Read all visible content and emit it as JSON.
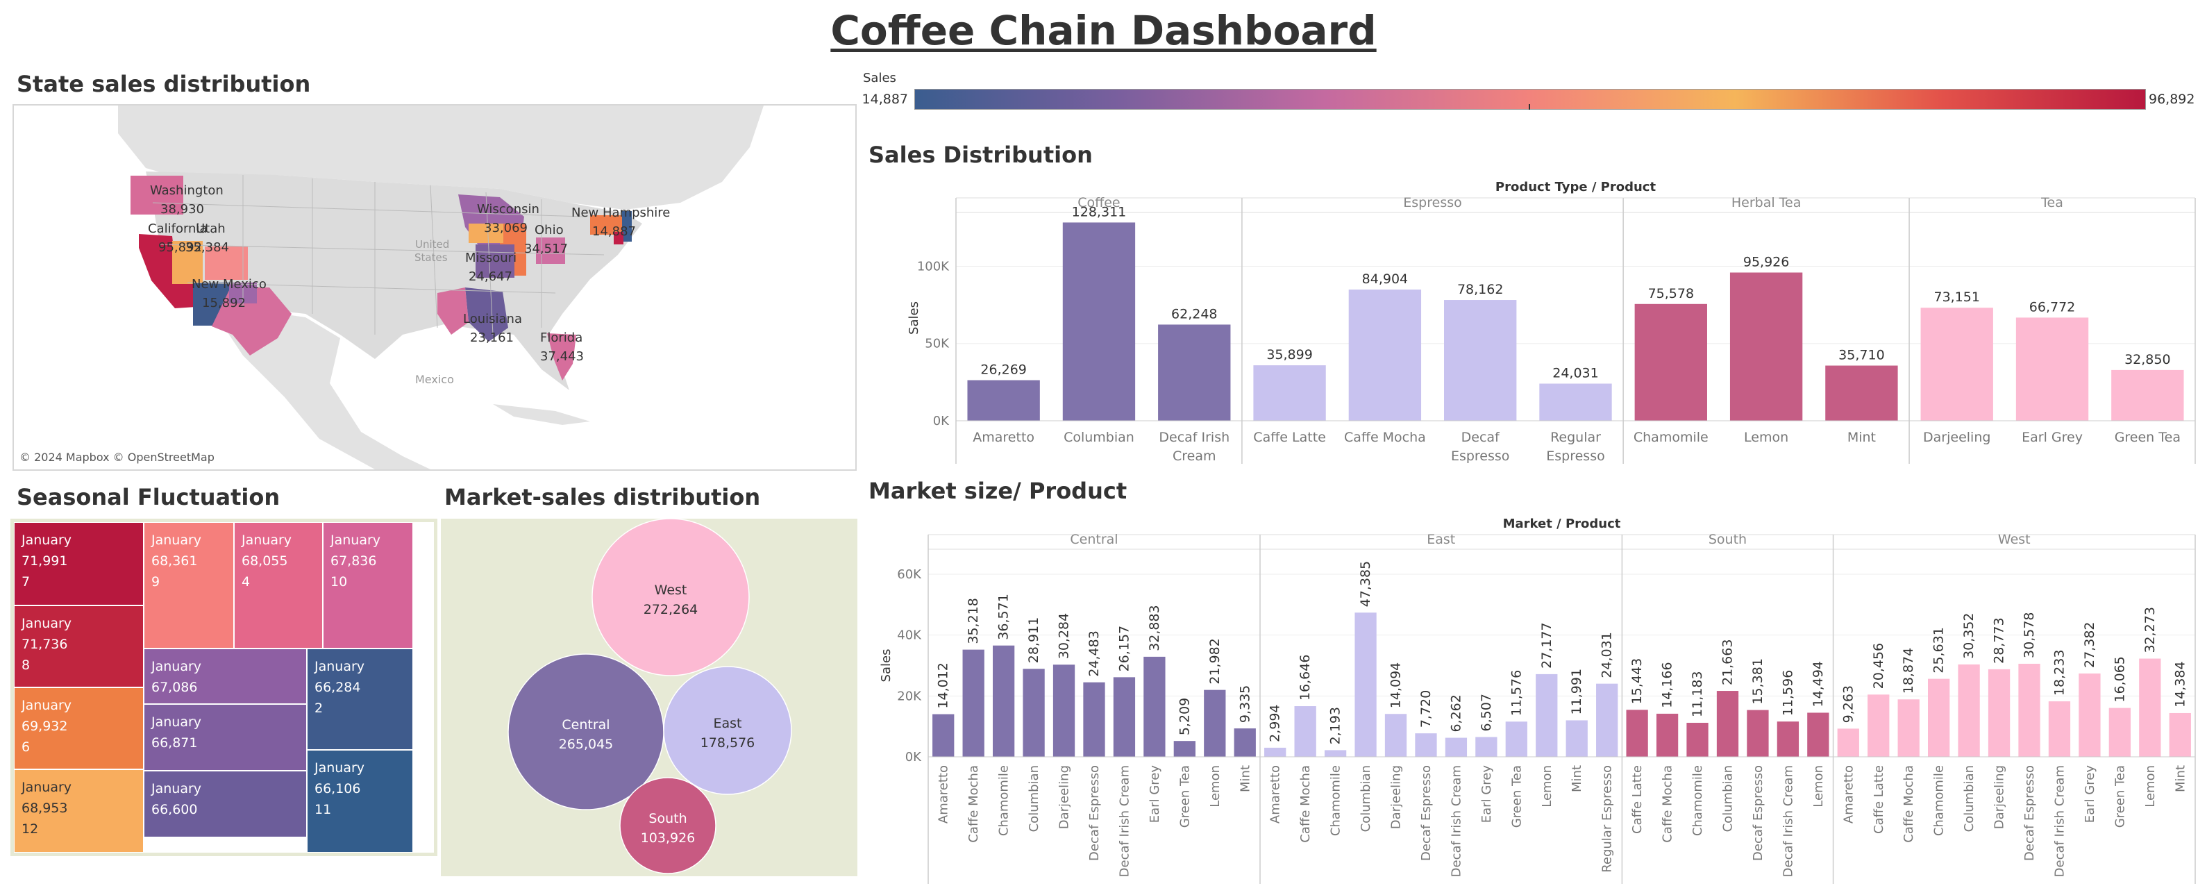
{
  "title": "Coffee Chain Dashboard",
  "legend": {
    "label": "Sales",
    "min": "14,887",
    "max": "96,892",
    "colors": [
      "#3b5d8f",
      "#7a5f9e",
      "#c46aa0",
      "#f2837c",
      "#f5b55a",
      "#e3524a",
      "#b7183e"
    ]
  },
  "map": {
    "title": "State sales distribution",
    "credit": "© 2024 Mapbox © OpenStreetMap",
    "country_labels": [
      "United States",
      "Mexico"
    ],
    "states": [
      {
        "name": "Washington",
        "value": "38,930",
        "color": "#d76b98"
      },
      {
        "name": "California",
        "value": "95,892",
        "color": "#c21e47"
      },
      {
        "name": "Utah",
        "value": "35,384",
        "color": "#f5ac5c"
      },
      {
        "name": "New Mexico",
        "value": "15,892",
        "color": "#3f5b8c"
      },
      {
        "name": "Wisconsin",
        "value": "33,069",
        "color": "#9e67a8"
      },
      {
        "name": "Missouri",
        "value": "24,647",
        "color": "#7c5f9c"
      },
      {
        "name": "Ohio",
        "value": "34,517",
        "color": "#cf6fa2"
      },
      {
        "name": "New Hampshire",
        "value": "14,887",
        "color": "#3b5d8f"
      },
      {
        "name": "Louisiana",
        "value": "23,161",
        "color": "#6a5c98"
      },
      {
        "name": "Florida",
        "value": "37,443",
        "color": "#d66e9c"
      }
    ]
  },
  "treemap": {
    "title": "Seasonal Fluctuation",
    "cells": [
      {
        "month": "January",
        "value": "71,991",
        "num": "7",
        "color": "#b7183e"
      },
      {
        "month": "January",
        "value": "71,736",
        "num": "8",
        "color": "#c0253f"
      },
      {
        "month": "January",
        "value": "69,932",
        "num": "6",
        "color": "#ee7f44"
      },
      {
        "month": "January",
        "value": "68,953",
        "num": "12",
        "color": "#f8ad5e"
      },
      {
        "month": "January",
        "value": "68,361",
        "num": "9",
        "color": "#f57f7c"
      },
      {
        "month": "January",
        "value": "68,055",
        "num": "4",
        "color": "#e4678a"
      },
      {
        "month": "January",
        "value": "67,836",
        "num": "10",
        "color": "#d66498"
      },
      {
        "month": "January",
        "value": "67,086",
        "num": "",
        "color": "#8e5fa3"
      },
      {
        "month": "January",
        "value": "66,871",
        "num": "",
        "color": "#7f5e9f"
      },
      {
        "month": "January",
        "value": "66,600",
        "num": "",
        "color": "#6c5d9a"
      },
      {
        "month": "January",
        "value": "66,284",
        "num": "2",
        "color": "#3f5b8c"
      },
      {
        "month": "January",
        "value": "66,106",
        "num": "11",
        "color": "#335d8c"
      }
    ]
  },
  "bubbles": {
    "title": "Market-sales distribution",
    "items": [
      {
        "name": "West",
        "value": "272,264",
        "color": "#fcbad3"
      },
      {
        "name": "Central",
        "value": "265,045",
        "color": "#7f6fa6"
      },
      {
        "name": "East",
        "value": "178,576",
        "color": "#c6c1ef"
      },
      {
        "name": "South",
        "value": "103,926",
        "color": "#c85a82"
      }
    ]
  },
  "chart_data": [
    {
      "type": "bar",
      "title": "Sales Distribution",
      "header": "Product Type / Product",
      "ylabel": "Sales",
      "yticks": [
        "0K",
        "50K",
        "100K"
      ],
      "ylim": [
        0,
        133000
      ],
      "groups": [
        {
          "name": "Coffee",
          "color": "#8073ab",
          "categories": [
            "Amaretto",
            "Columbian",
            "Decaf Irish Cream"
          ],
          "values": [
            26269,
            128311,
            62248
          ],
          "labels": [
            "26,269",
            "128,311",
            "62,248"
          ]
        },
        {
          "name": "Espresso",
          "color": "#c8c2ef",
          "categories": [
            "Caffe Latte",
            "Caffe Mocha",
            "Decaf Espresso",
            "Regular Espresso"
          ],
          "values": [
            35899,
            84904,
            78162,
            24031
          ],
          "labels": [
            "35,899",
            "84,904",
            "78,162",
            "24,031"
          ]
        },
        {
          "name": "Herbal Tea",
          "color": "#c55d85",
          "categories": [
            "Chamomile",
            "Lemon",
            "Mint"
          ],
          "values": [
            75578,
            95926,
            35710
          ],
          "labels": [
            "75,578",
            "95,926",
            "35,710"
          ]
        },
        {
          "name": "Tea",
          "color": "#fdbad2",
          "categories": [
            "Darjeeling",
            "Earl Grey",
            "Green Tea"
          ],
          "values": [
            73151,
            66772,
            32850
          ],
          "labels": [
            "73,151",
            "66,772",
            "32,850"
          ]
        }
      ]
    },
    {
      "type": "bar",
      "title": "Market size/ Product",
      "header": "Market / Product",
      "ylabel": "Sales",
      "yticks": [
        "0K",
        "20K",
        "40K",
        "60K"
      ],
      "ylim": [
        0,
        60000
      ],
      "groups": [
        {
          "name": "Central",
          "color": "#8073ab",
          "categories": [
            "Amaretto",
            "Caffe Mocha",
            "Chamomile",
            "Columbian",
            "Darjeeling",
            "Decaf Espresso",
            "Decaf Irish Cream",
            "Earl Grey",
            "Green Tea",
            "Lemon",
            "Mint"
          ],
          "values": [
            14012,
            35218,
            36571,
            28911,
            30284,
            24483,
            26157,
            32883,
            5209,
            21982,
            9335
          ],
          "labels": [
            "14,012",
            "35,218",
            "36,571",
            "28,911",
            "30,284",
            "24,483",
            "26,157",
            "32,883",
            "5,209",
            "21,982",
            "9,335"
          ]
        },
        {
          "name": "East",
          "color": "#c8c2ef",
          "categories": [
            "Amaretto",
            "Caffe Mocha",
            "Chamomile",
            "Columbian",
            "Darjeeling",
            "Decaf Espresso",
            "Decaf Irish Cream",
            "Earl Grey",
            "Green Tea",
            "Lemon",
            "Mint",
            "Regular Espresso"
          ],
          "values": [
            2994,
            16646,
            2193,
            47385,
            14094,
            7720,
            6262,
            6507,
            11576,
            27177,
            11991,
            24031
          ],
          "labels": [
            "2,994",
            "16,646",
            "2,193",
            "47,385",
            "14,094",
            "7,720",
            "6,262",
            "6,507",
            "11,576",
            "27,177",
            "11,991",
            "24,031"
          ]
        },
        {
          "name": "South",
          "color": "#c55d85",
          "categories": [
            "Caffe Latte",
            "Caffe Mocha",
            "Chamomile",
            "Columbian",
            "Decaf Espresso",
            "Decaf Irish Cream",
            "Lemon"
          ],
          "values": [
            15443,
            14166,
            11183,
            21663,
            15381,
            11596,
            14494
          ],
          "labels": [
            "15,443",
            "14,166",
            "11,183",
            "21,663",
            "15,381",
            "11,596",
            "14,494"
          ]
        },
        {
          "name": "West",
          "color": "#fdbad2",
          "categories": [
            "Amaretto",
            "Caffe Latte",
            "Caffe Mocha",
            "Chamomile",
            "Columbian",
            "Darjeeling",
            "Decaf Espresso",
            "Decaf Irish Cream",
            "Earl Grey",
            "Green Tea",
            "Lemon",
            "Mint"
          ],
          "values": [
            9263,
            20456,
            18874,
            25631,
            30352,
            28773,
            30578,
            18233,
            27382,
            16065,
            32273,
            14384
          ],
          "labels": [
            "9,263",
            "20,456",
            "18,874",
            "25,631",
            "30,352",
            "28,773",
            "30,578",
            "18,233",
            "27,382",
            "16,065",
            "32,273",
            "14,384"
          ]
        }
      ]
    }
  ]
}
